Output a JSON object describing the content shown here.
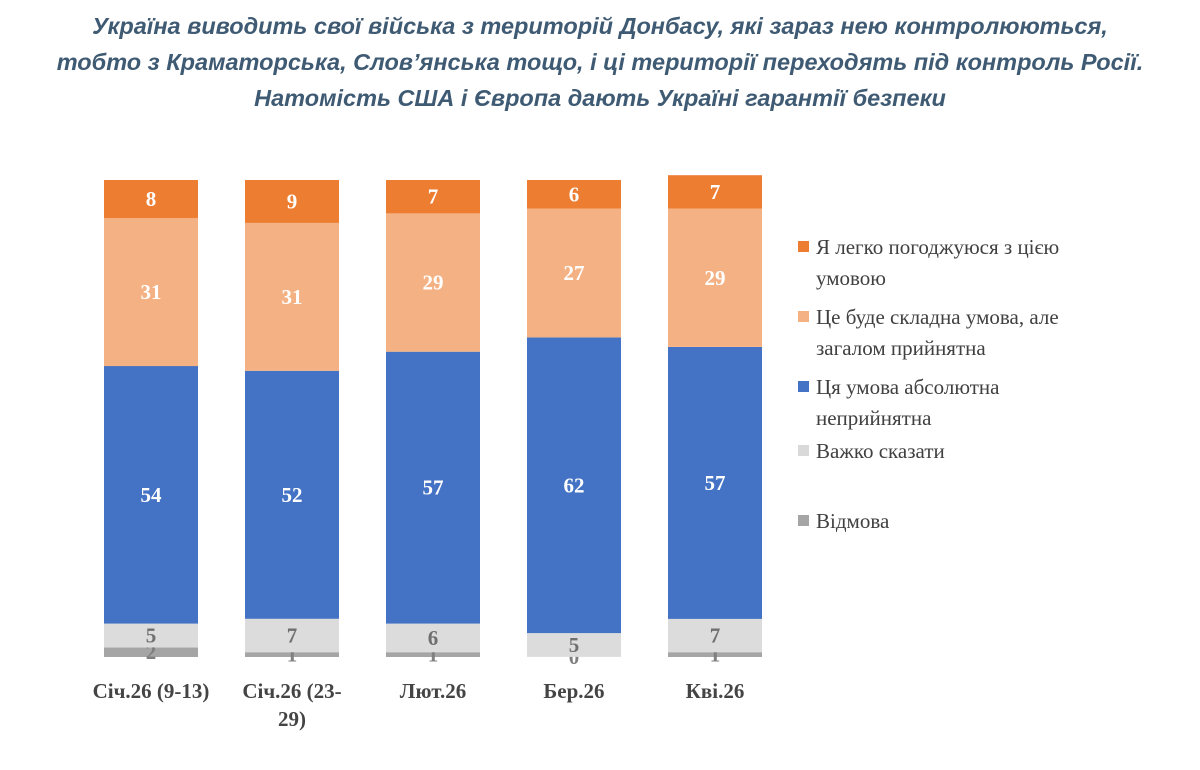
{
  "chart_data": {
    "type": "bar",
    "stacked": true,
    "title_lines": [
      "Україна виводить свої війська з територій Донбасу, які зараз нею контролюються,",
      "тобто з Краматорська, Слов’янська тощо, і ці території переходять під контроль Росії.",
      "Натомість США і Європа дають Україні гарантії безпеки"
    ],
    "categories": [
      [
        "Січ.26 (9-13)"
      ],
      [
        "Січ.26 (23-",
        "29)"
      ],
      [
        "Лют.26"
      ],
      [
        "Бер.26"
      ],
      [
        "Кві.26"
      ]
    ],
    "ylim": [
      0,
      100
    ],
    "legend_position": "right",
    "series": [
      {
        "name": "Відмова",
        "color": "#a5a5a5",
        "label_color": "#7f7f7f",
        "values": [
          2,
          1,
          1,
          0,
          1
        ]
      },
      {
        "name": "Важко сказати",
        "color": "#dcdcdc",
        "label_color": "#6f6f6f",
        "values": [
          5,
          7,
          6,
          5,
          7
        ]
      },
      {
        "name": "Ця умова абсолютна неприйнятна",
        "color": "#4472c4",
        "label_color": "#ffffff",
        "values": [
          54,
          52,
          57,
          62,
          57
        ]
      },
      {
        "name": "Це буде складна умова, але загалом прийнятна",
        "color": "#f4b183",
        "label_color": "#ffffff",
        "values": [
          31,
          31,
          29,
          27,
          29
        ]
      },
      {
        "name": "Я легко погоджуюся з цією умовою",
        "color": "#ed7d31",
        "label_color": "#ffffff",
        "values": [
          8,
          9,
          7,
          6,
          7
        ]
      }
    ],
    "legend_order": [
      {
        "lines": [
          "Я легко погоджуюся з цією",
          "умовою"
        ],
        "color": "#ed7d31"
      },
      {
        "lines": [
          "Це буде складна умова, але",
          "загалом прийнятна"
        ],
        "color": "#f4b183"
      },
      {
        "lines": [
          "Ця умова абсолютна",
          "неприйнятна"
        ],
        "color": "#4472c4"
      },
      {
        "lines": [
          "Важко сказати"
        ],
        "color": "#d9d9d9"
      },
      {
        "lines": [
          "Відмова"
        ],
        "color": "#a5a5a5"
      }
    ]
  }
}
